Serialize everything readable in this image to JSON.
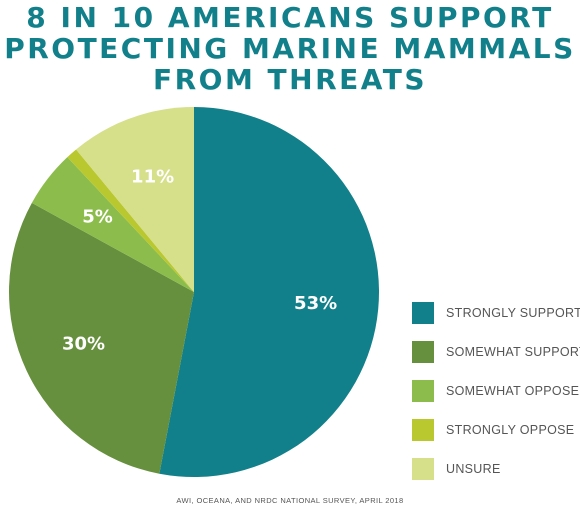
{
  "title": {
    "lines": [
      "8 IN 10 AMERICANS SUPPORT",
      "PROTECTING MARINE MAMMALS",
      "FROM THREATS"
    ],
    "color": "#12808a"
  },
  "chart_data": {
    "type": "pie",
    "slices": [
      {
        "name": "STRONGLY SUPPORT",
        "value": 53,
        "label": "53%",
        "color": "#12808a"
      },
      {
        "name": "SOMEWHAT SUPPORT",
        "value": 30,
        "label": "30%",
        "color": "#66903d"
      },
      {
        "name": "SOMEWHAT OPPOSE",
        "value": 5,
        "label": "5%",
        "color": "#8cbd4c"
      },
      {
        "name": "STRONGLY OPPOSE",
        "value": 1,
        "label": "",
        "color": "#b9c82f"
      },
      {
        "name": "UNSURE",
        "value": 11,
        "label": "11%",
        "color": "#d6df8a"
      }
    ],
    "start_angle": "12 o'clock",
    "direction": "clockwise",
    "legend_position": "right"
  },
  "source": "AWI, OCEANA, AND NRDC NATIONAL SURVEY, APRIL 2018"
}
